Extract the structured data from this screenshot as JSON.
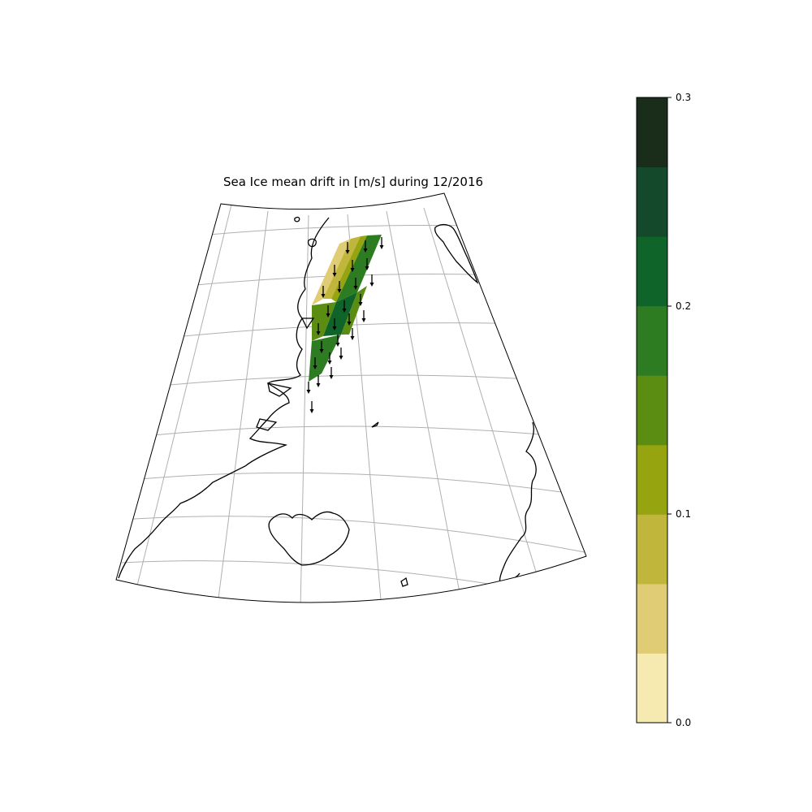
{
  "title": "Sea Ice mean drift in [m/s] during 12/2016",
  "colorbar": {
    "min": 0.0,
    "max": 0.3,
    "ticks": [
      "0.0",
      "0.1",
      "0.2",
      "0.3"
    ],
    "colors": [
      "#f6eab1",
      "#e0cc74",
      "#c0b63b",
      "#95a40f",
      "#5b8d13",
      "#2e7c22",
      "#0e6429",
      "#144a2b",
      "#1a2d1b"
    ]
  },
  "drift": {
    "direction": "southward",
    "band_levels": [
      0.05,
      0.08,
      0.11,
      0.14,
      0.17,
      0.2,
      0.18,
      0.16
    ]
  },
  "colors": {
    "land_outline": "#000000",
    "gridline": "#b0b0b0",
    "map_frame": "#000000"
  }
}
